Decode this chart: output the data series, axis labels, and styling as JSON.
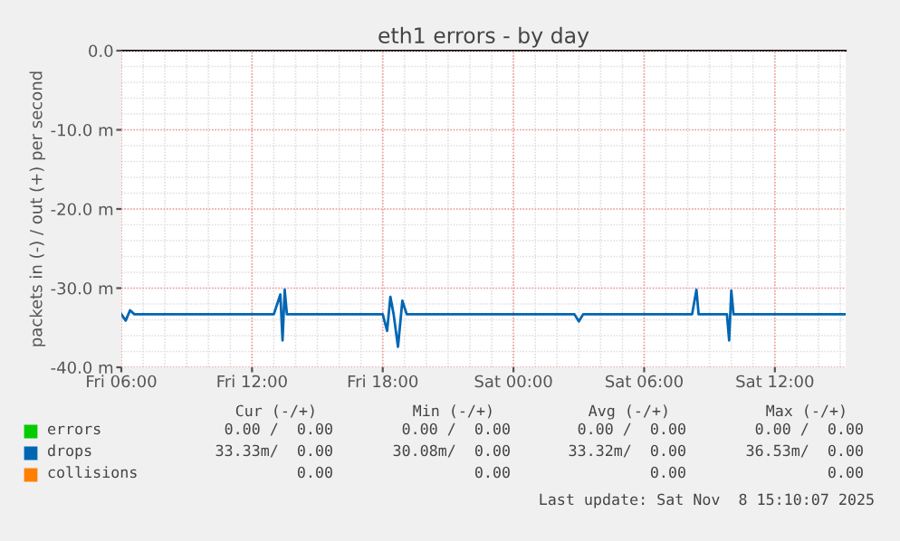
{
  "chart_data": {
    "type": "line",
    "title": "eth1 errors - by day",
    "ylabel": "packets in (-) / out (+) per second",
    "x": [
      "2025-11-07T06:00",
      "2025-11-07T06:12",
      "2025-11-07T06:24",
      "2025-11-07T06:36",
      "2025-11-07T13:00",
      "2025-11-07T13:18",
      "2025-11-07T13:24",
      "2025-11-07T13:30",
      "2025-11-07T13:36",
      "2025-11-07T13:48",
      "2025-11-07T18:00",
      "2025-11-07T18:12",
      "2025-11-07T18:21",
      "2025-11-07T18:30",
      "2025-11-07T18:42",
      "2025-11-07T18:54",
      "2025-11-07T19:06",
      "2025-11-08T02:48",
      "2025-11-08T03:00",
      "2025-11-08T03:12",
      "2025-11-08T08:12",
      "2025-11-08T08:24",
      "2025-11-08T08:30",
      "2025-11-08T08:36",
      "2025-11-08T09:48",
      "2025-11-08T09:54",
      "2025-11-08T10:00",
      "2025-11-08T10:06",
      "2025-11-08T10:18",
      "2025-11-08T15:12"
    ],
    "series": [
      {
        "name": "errors",
        "color": "#00cc00",
        "values": [
          null,
          null,
          null,
          null,
          null,
          null,
          null,
          null,
          null,
          null,
          null,
          null,
          null,
          null,
          null,
          null,
          null,
          null,
          null,
          null,
          null,
          null,
          null,
          null,
          null,
          null,
          null,
          null,
          null,
          null
        ]
      },
      {
        "name": "collisions",
        "color": "#ff7f00",
        "values": [
          null,
          null,
          null,
          null,
          null,
          null,
          null,
          null,
          null,
          null,
          null,
          null,
          null,
          null,
          null,
          null,
          null,
          null,
          null,
          null,
          null,
          null,
          null,
          null,
          null,
          null,
          null,
          null,
          null,
          null
        ]
      },
      {
        "name": "drops",
        "color": "#0066b3",
        "values": [
          -33.3,
          -34.1,
          -32.8,
          -33.3,
          -33.3,
          -30.8,
          -36.6,
          -30.2,
          -33.3,
          -33.3,
          -33.3,
          -35.4,
          -31.1,
          -33.3,
          -37.4,
          -31.6,
          -33.3,
          -33.3,
          -34.2,
          -33.3,
          -33.3,
          -30.2,
          -33.3,
          -33.3,
          -33.3,
          -36.6,
          -30.3,
          -33.3,
          -33.3,
          -33.3
        ]
      }
    ],
    "xlim": [
      "2025-11-07T06:00",
      "2025-11-08T15:15"
    ],
    "xticks": [
      {
        "value": "2025-11-07T06:00",
        "label": "Fri 06:00"
      },
      {
        "value": "2025-11-07T12:00",
        "label": "Fri 12:00"
      },
      {
        "value": "2025-11-07T18:00",
        "label": "Fri 18:00"
      },
      {
        "value": "2025-11-08T00:00",
        "label": "Sat 00:00"
      },
      {
        "value": "2025-11-08T06:00",
        "label": "Sat 06:00"
      },
      {
        "value": "2025-11-08T12:00",
        "label": "Sat 12:00"
      }
    ],
    "ylim": [
      -40,
      0
    ],
    "yticks": [
      {
        "value": 0,
        "label": "0.0"
      },
      {
        "value": -10,
        "label": "-10.0 m"
      },
      {
        "value": -20,
        "label": "-20.0 m"
      },
      {
        "value": -30,
        "label": "-30.0 m"
      },
      {
        "value": -40,
        "label": "-40.0 m"
      }
    ],
    "grid": true,
    "legend": "bottom",
    "annotations": [
      "Cur (-/+)",
      "Min (-/+)",
      "Avg (-/+)",
      "Max (-/+)",
      "0.00 /  0.00",
      "0.00 /  0.00",
      "0.00 /  0.00",
      "0.00 /  0.00",
      "33.33m/  0.00",
      "30.08m/  0.00",
      "33.32m/  0.00",
      "36.53m/  0.00",
      "0.00",
      "0.00",
      "0.00",
      "0.00",
      "Last update: Sat Nov  8 15:10:07 2025"
    ]
  }
}
